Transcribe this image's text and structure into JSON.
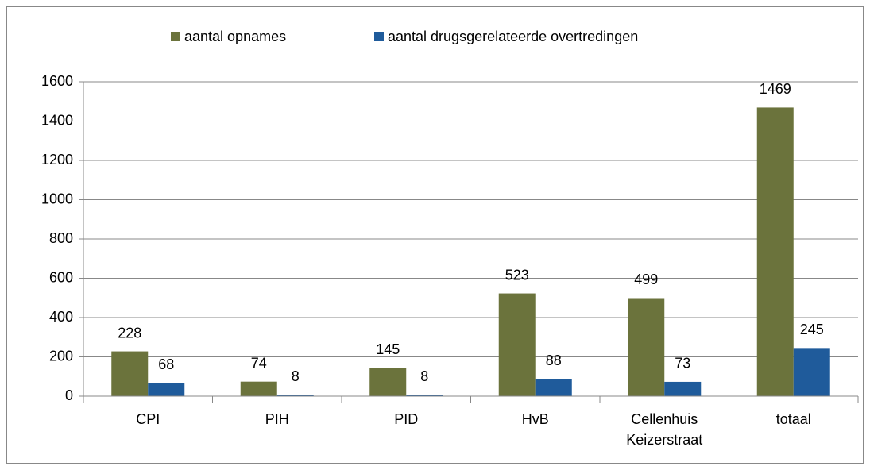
{
  "chart_data": {
    "type": "bar",
    "categories": [
      "CPI",
      "PIH",
      "PID",
      "HvB",
      "Cellenhuis Keizerstraat",
      "totaal"
    ],
    "series": [
      {
        "name": "aantal opnames",
        "color": "#6b733c",
        "values": [
          228,
          74,
          145,
          523,
          499,
          1469
        ]
      },
      {
        "name": "aantal drugsgerelateerde overtredingen",
        "color": "#1f5b9b",
        "values": [
          68,
          8,
          8,
          88,
          73,
          245
        ]
      }
    ],
    "ylim": [
      0,
      1600
    ],
    "yticks": [
      0,
      200,
      400,
      600,
      800,
      1000,
      1200,
      1400,
      1600
    ],
    "grid": true,
    "legend": "top"
  }
}
